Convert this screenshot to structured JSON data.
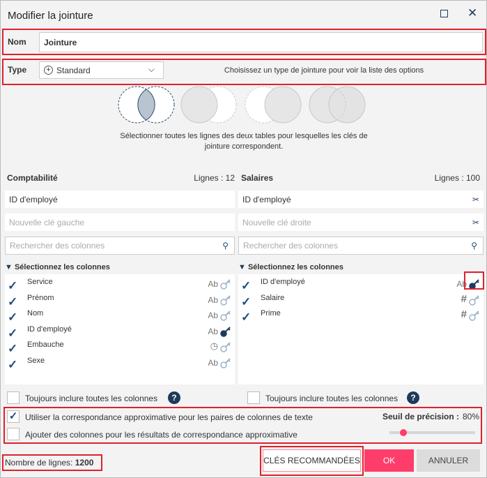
{
  "title": "Modifier la jointure",
  "name": {
    "label": "Nom",
    "value": "Jointure"
  },
  "type": {
    "label": "Type",
    "selected": "Standard",
    "hint": "Choisissez un type de jointure pour voir la liste des options"
  },
  "join_types": [
    "inner",
    "left",
    "right",
    "full"
  ],
  "join_description": [
    "Sélectionner toutes les lignes des deux tables pour lesquelles les clés de",
    "jointure correspondent."
  ],
  "left": {
    "table": "Comptabilité",
    "rows_label": "Lignes : 12",
    "key": "ID d'employé",
    "new_key_placeholder": "Nouvelle clé gauche",
    "search_placeholder": "Rechercher des colonnes",
    "select_label": "Sélectionnez les colonnes",
    "columns": [
      {
        "name": "Service",
        "type": "Ab",
        "key": false
      },
      {
        "name": "Prénom",
        "type": "Ab",
        "key": false
      },
      {
        "name": "Nom",
        "type": "Ab",
        "key": false
      },
      {
        "name": "ID d'employé",
        "type": "Ab",
        "key": true
      },
      {
        "name": "Embauche",
        "type": "clock",
        "key": false
      },
      {
        "name": "Sexe",
        "type": "Ab",
        "key": false
      }
    ],
    "include_all": "Toujours inclure toutes les colonnes"
  },
  "right": {
    "table": "Salaires",
    "rows_label": "Lignes : 100",
    "key": "ID d'employé",
    "new_key_placeholder": "Nouvelle clé droite",
    "search_placeholder": "Rechercher des colonnes",
    "select_label": "Sélectionnez les colonnes",
    "columns": [
      {
        "name": "ID d'employé",
        "type": "Ab",
        "key": true
      },
      {
        "name": "Salaire",
        "type": "#",
        "key": false
      },
      {
        "name": "Prime",
        "type": "#",
        "key": false
      }
    ],
    "include_all": "Toujours inclure toutes les colonnes"
  },
  "fuzzy": {
    "use_label": "Utiliser la correspondance approximative pour les paires de colonnes de texte",
    "use_checked": true,
    "add_label": "Ajouter des colonnes pour les résultats de correspondance approximative",
    "add_checked": false,
    "threshold_label": "Seuil de précision :",
    "threshold_value": "80%",
    "slider_fraction": 0.16
  },
  "row_count": {
    "label": "Nombre de lignes:",
    "value": "1200"
  },
  "buttons": {
    "recommended": "CLÉS RECOMMANDÉES",
    "ok": "OK",
    "cancel": "ANNULER"
  },
  "colors": {
    "accent": "#ff3d6a",
    "dark": "#1f3a5a",
    "highlight": "#e0202c"
  }
}
